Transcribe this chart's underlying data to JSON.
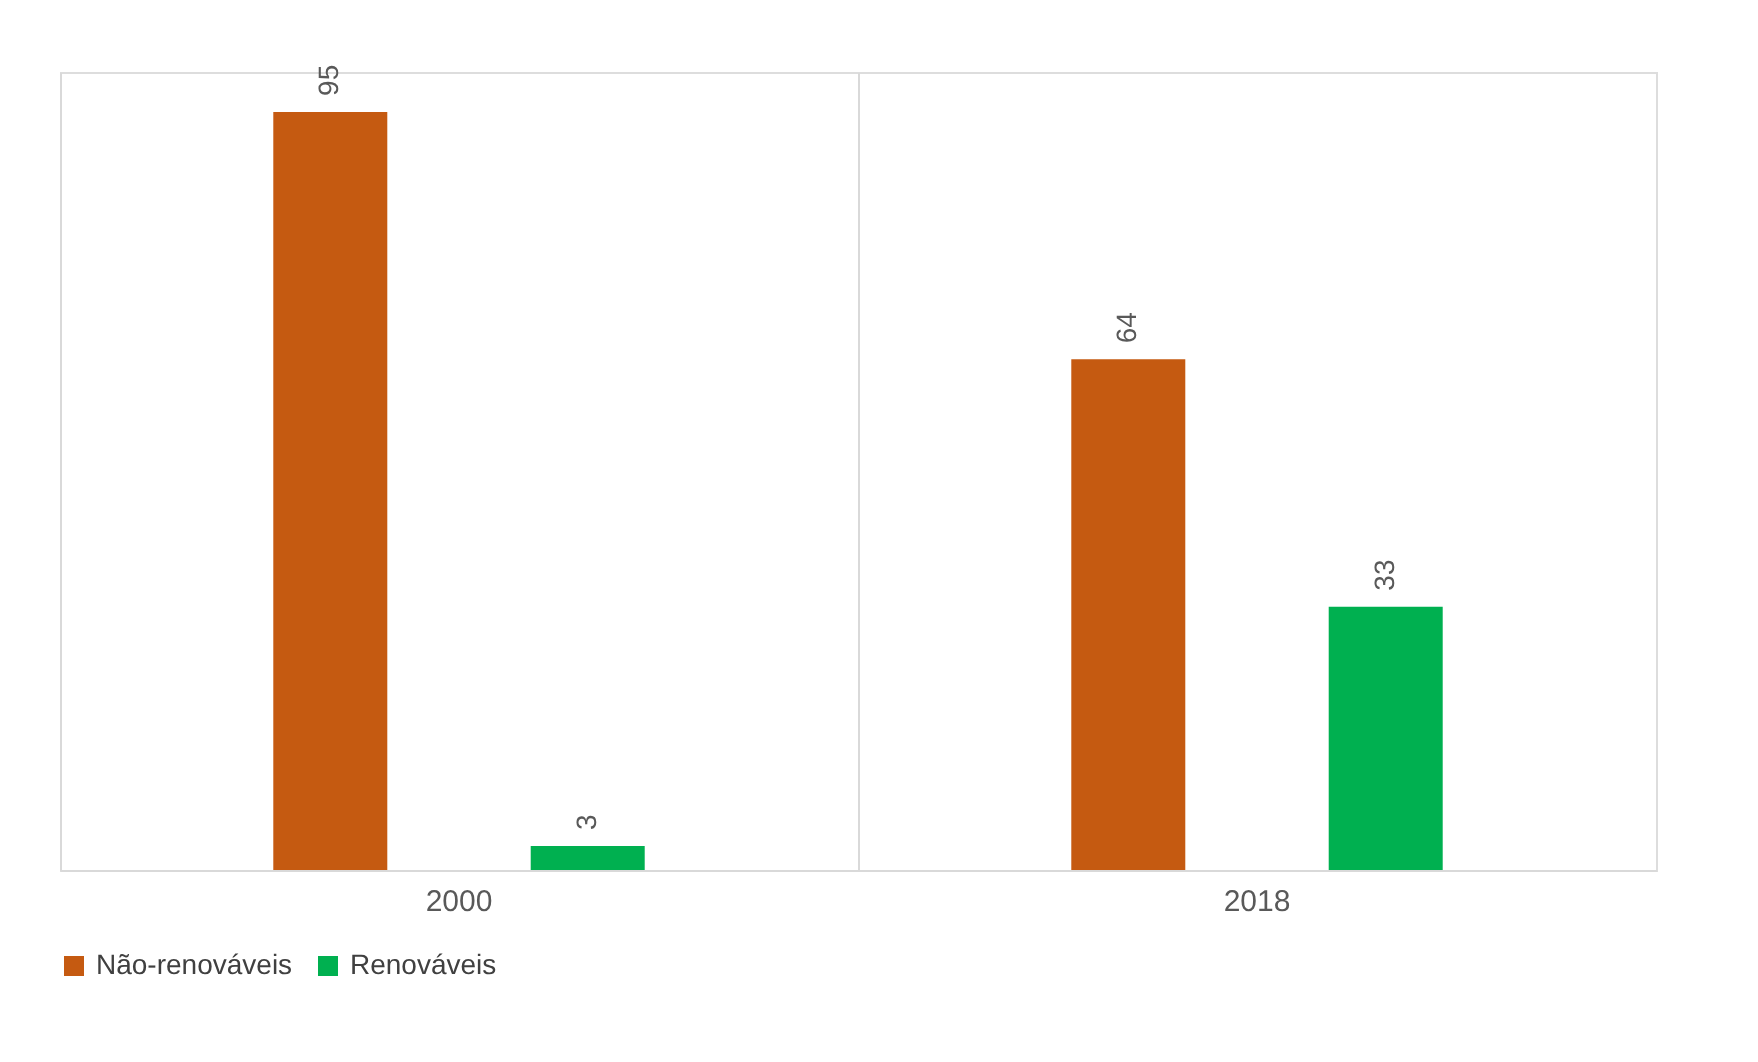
{
  "chart_data": {
    "type": "bar",
    "categories": [
      "2000",
      "2018"
    ],
    "series": [
      {
        "name": "Não-renováveis",
        "color": "#c55a11",
        "values": [
          95,
          64
        ]
      },
      {
        "name": "Renováveis",
        "color": "#00b050",
        "values": [
          3,
          33
        ]
      }
    ],
    "data_labels": true,
    "legend": "bottom"
  }
}
